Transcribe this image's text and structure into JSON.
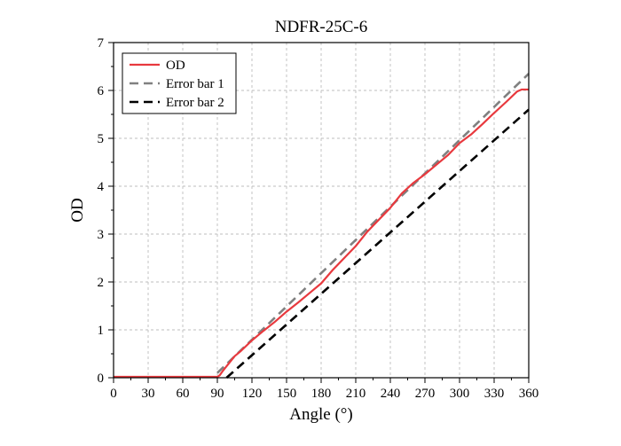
{
  "chart_data": {
    "type": "line",
    "title": "NDFR-25C-6",
    "xlabel": "Angle (°)",
    "ylabel": "OD",
    "xlim": [
      0,
      360
    ],
    "ylim": [
      0,
      7
    ],
    "xticks": [
      0,
      30,
      60,
      90,
      120,
      150,
      180,
      210,
      240,
      270,
      300,
      330,
      360
    ],
    "yticks": [
      0,
      1,
      2,
      3,
      4,
      5,
      6,
      7
    ],
    "grid": true,
    "legend_position": "top-left",
    "series": [
      {
        "name": "OD",
        "color": "#e8393e",
        "dash": "solid",
        "x": [
          0,
          90,
          92,
          95,
          100,
          105,
          110,
          120,
          130,
          140,
          150,
          160,
          170,
          180,
          190,
          200,
          210,
          220,
          230,
          240,
          250,
          260,
          270,
          280,
          290,
          300,
          310,
          320,
          330,
          340,
          350,
          354,
          358,
          360
        ],
        "y": [
          0.02,
          0.02,
          0.05,
          0.15,
          0.3,
          0.45,
          0.55,
          0.78,
          0.98,
          1.17,
          1.38,
          1.57,
          1.77,
          1.97,
          2.25,
          2.5,
          2.75,
          3.05,
          3.3,
          3.55,
          3.85,
          4.07,
          4.25,
          4.45,
          4.65,
          4.9,
          5.08,
          5.3,
          5.53,
          5.75,
          5.98,
          6.02,
          6.02,
          6.02
        ]
      },
      {
        "name": "Error bar 1",
        "color": "#808080",
        "dash": "dashed",
        "x": [
          90,
          360
        ],
        "y": [
          0.1,
          6.35
        ]
      },
      {
        "name": "Error bar 2",
        "color": "#000000",
        "dash": "dashed",
        "x": [
          98,
          360
        ],
        "y": [
          0,
          5.6
        ]
      }
    ]
  }
}
